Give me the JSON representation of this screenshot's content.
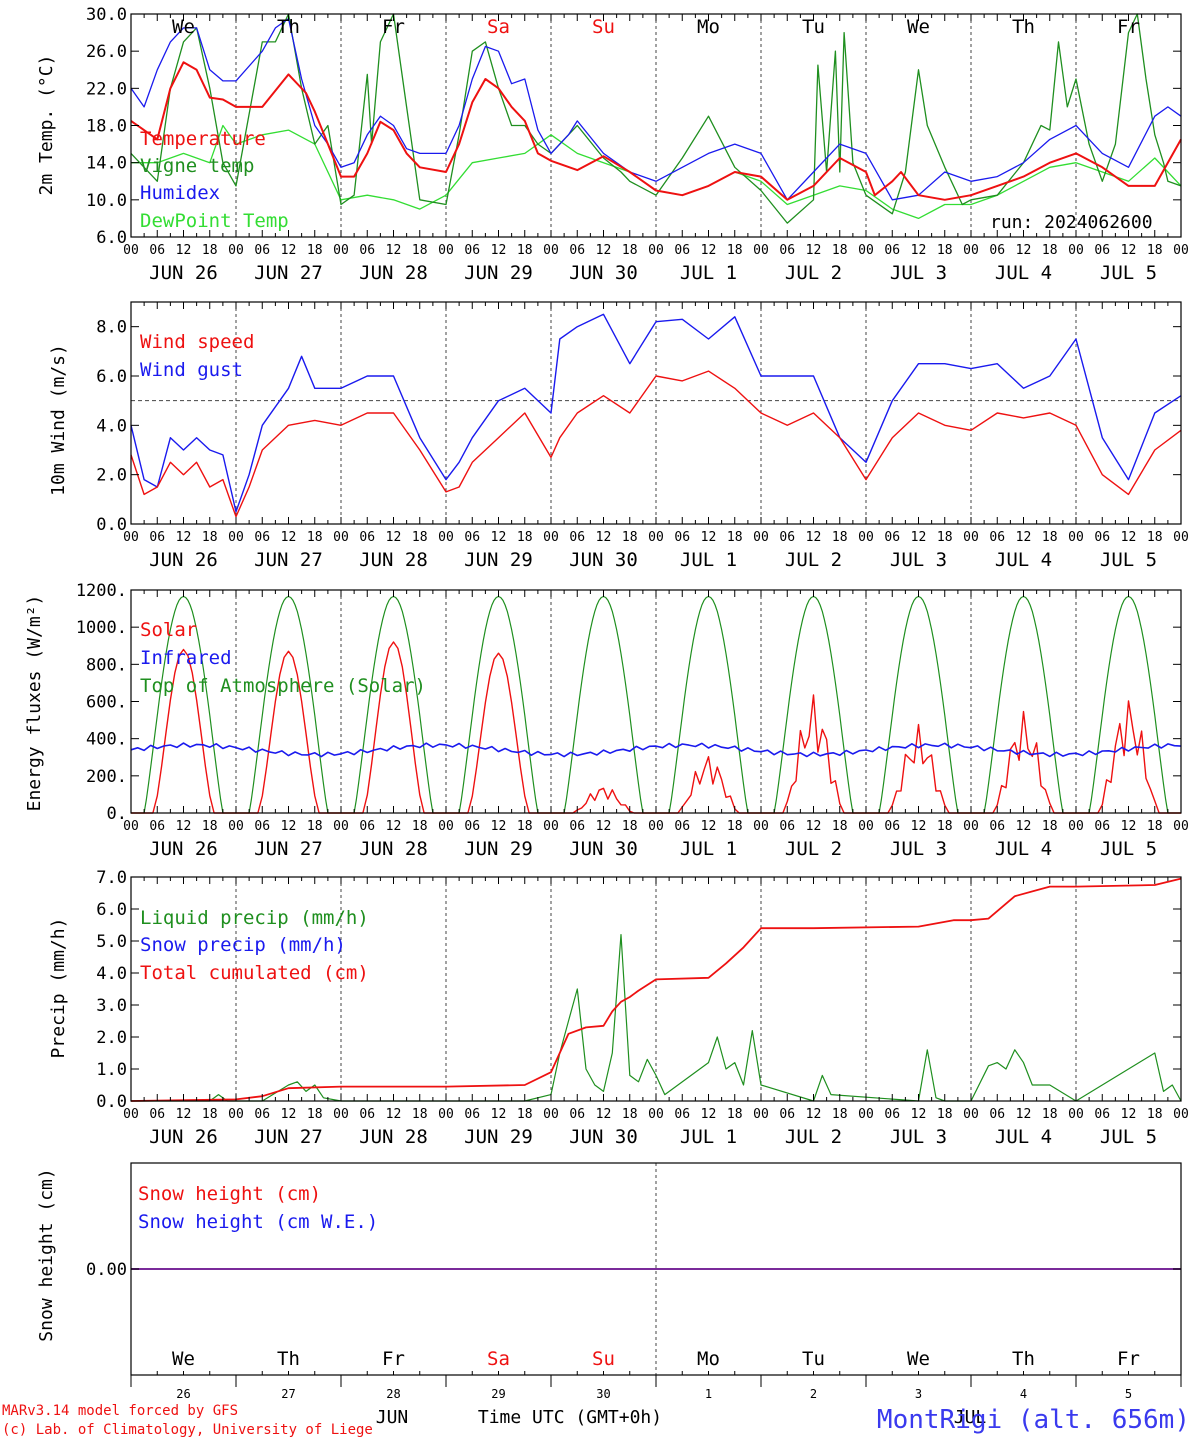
{
  "colors": {
    "red": "#ee1111",
    "blue": "#1a1aee",
    "green": "#1f8f1f",
    "lightgreen": "#33dd33",
    "purple": "#7a2a9a",
    "axis": "#000000",
    "gridline": "#555555"
  },
  "weekday_labels": [
    {
      "text": "We",
      "color": "black"
    },
    {
      "text": "Th",
      "color": "black"
    },
    {
      "text": "Fr",
      "color": "black"
    },
    {
      "text": "Sa",
      "color": "red"
    },
    {
      "text": "Su",
      "color": "red"
    },
    {
      "text": "Mo",
      "color": "black"
    },
    {
      "text": "Tu",
      "color": "black"
    },
    {
      "text": "We",
      "color": "black"
    },
    {
      "text": "Th",
      "color": "black"
    },
    {
      "text": "Fr",
      "color": "black"
    }
  ],
  "date_labels": [
    "JUN 26",
    "JUN 27",
    "JUN 28",
    "JUN 29",
    "JUN 30",
    "JUL  1",
    "JUL  2",
    "JUL  3",
    "JUL  4",
    "JUL  5"
  ],
  "hour_labels": [
    "00",
    "06",
    "12",
    "18"
  ],
  "last_hour_label": "00",
  "run_label": "run: 2024062600",
  "footer": {
    "model_line1": "MARv3.14 model forced by GFS",
    "model_line2": "(c) Lab. of Climatology, University of Liege",
    "month_label_jun": "JUN",
    "month_label_jul": "JUL",
    "time_label": "Time UTC (GMT+0h)",
    "station_label": "MontRigi (alt. 656m)",
    "day_numbers": [
      "26",
      "27",
      "28",
      "29",
      "30",
      "1",
      "2",
      "3",
      "4",
      "5"
    ]
  },
  "chart_data": [
    {
      "type": "line",
      "ylabel": "2m Temp. (°C)",
      "ylim": [
        6,
        30
      ],
      "yticks": [
        "6.0",
        "10.0",
        "14.0",
        "18.0",
        "22.0",
        "26.0",
        "30.0"
      ],
      "x_unit": "hours since 2024-06-26 00 UTC",
      "series": [
        {
          "name": "Temperature",
          "color": "red",
          "x": [
            0,
            6,
            9,
            12,
            15,
            18,
            21,
            24,
            30,
            36,
            40,
            42,
            48,
            51,
            54,
            57,
            60,
            63,
            66,
            72,
            75,
            78,
            81,
            84,
            87,
            90,
            93,
            96,
            102,
            108,
            114,
            120,
            126,
            132,
            138,
            144,
            150,
            156,
            162,
            168,
            170,
            174,
            176,
            180,
            186,
            192,
            198,
            204,
            210,
            216,
            222,
            228,
            234,
            240
          ],
          "y": [
            18.5,
            16.5,
            22.0,
            24.8,
            24.0,
            21.0,
            20.8,
            20.0,
            20.0,
            23.5,
            21.5,
            19.5,
            12.5,
            12.5,
            15.0,
            18.4,
            17.5,
            15.0,
            13.5,
            13.0,
            16.0,
            20.5,
            23.0,
            22.0,
            20.0,
            18.5,
            15.0,
            14.2,
            13.2,
            14.7,
            13.0,
            11.0,
            10.5,
            11.5,
            13.0,
            12.5,
            10.0,
            11.5,
            14.5,
            13.0,
            10.5,
            12.0,
            13.0,
            10.5,
            10.0,
            10.5,
            11.5,
            12.5,
            14.0,
            15.0,
            13.5,
            11.5,
            11.5,
            16.5
          ]
        },
        {
          "name": "Vigne temp",
          "color": "green",
          "x": [
            0,
            6,
            9,
            12,
            15,
            18,
            21,
            24,
            30,
            33,
            36,
            39,
            42,
            45,
            48,
            51,
            54,
            55,
            57,
            60,
            63,
            66,
            72,
            75,
            78,
            81,
            84,
            87,
            90,
            93,
            96,
            99,
            102,
            108,
            112,
            114,
            120,
            126,
            132,
            138,
            144,
            150,
            156,
            157,
            159,
            161,
            162,
            163,
            165,
            168,
            174,
            177,
            180,
            182,
            186,
            190,
            192,
            198,
            204,
            208,
            210,
            212,
            214,
            216,
            219,
            222,
            225,
            228,
            230,
            232,
            234,
            236,
            237,
            240
          ],
          "y": [
            15.0,
            12.0,
            22.0,
            27.0,
            28.5,
            22.0,
            14.0,
            11.5,
            27.0,
            27.0,
            30.0,
            22.0,
            16.0,
            18.0,
            9.5,
            10.5,
            23.5,
            16.0,
            27.0,
            30.0,
            20.0,
            10.0,
            9.5,
            17.0,
            26.0,
            27.0,
            22.0,
            18.0,
            18.0,
            16.0,
            15.0,
            16.5,
            18.0,
            14.5,
            13.0,
            12.0,
            10.5,
            14.5,
            19.0,
            13.5,
            11.0,
            7.5,
            10.0,
            24.5,
            13.0,
            26.0,
            13.0,
            28.0,
            14.0,
            10.5,
            8.5,
            13.0,
            24.0,
            18.0,
            13.5,
            9.5,
            10.0,
            10.5,
            14.0,
            18.0,
            17.5,
            27.0,
            20.0,
            23.0,
            16.0,
            12.0,
            16.0,
            28.0,
            30.0,
            23.0,
            17.0,
            14.0,
            12.0,
            11.5
          ]
        },
        {
          "name": "Humidex",
          "color": "blue",
          "x": [
            0,
            3,
            6,
            9,
            12,
            15,
            18,
            21,
            24,
            30,
            33,
            36,
            39,
            42,
            45,
            48,
            51,
            54,
            57,
            60,
            63,
            66,
            72,
            75,
            78,
            81,
            84,
            87,
            90,
            93,
            96,
            100,
            102,
            108,
            114,
            120,
            126,
            132,
            138,
            144,
            150,
            156,
            162,
            168,
            174,
            180,
            186,
            192,
            198,
            204,
            210,
            216,
            222,
            228,
            234,
            237,
            240
          ],
          "y": [
            22.0,
            20.0,
            24.0,
            27.0,
            28.5,
            28.5,
            24.0,
            22.8,
            22.8,
            26.0,
            28.5,
            29.5,
            23.0,
            18.0,
            16.0,
            13.5,
            14.0,
            17.0,
            19.0,
            18.0,
            15.5,
            15.0,
            15.0,
            18.0,
            23.0,
            26.5,
            26.0,
            22.5,
            23.0,
            17.5,
            15.0,
            17.0,
            18.5,
            15.0,
            13.0,
            12.0,
            13.5,
            15.0,
            16.0,
            15.0,
            10.0,
            13.0,
            16.0,
            15.0,
            10.0,
            10.5,
            13.0,
            12.0,
            12.5,
            14.0,
            16.5,
            18.0,
            15.0,
            13.5,
            19.0,
            20.0,
            19.0
          ]
        },
        {
          "name": "DewPoint Temp",
          "color": "lightgreen",
          "x": [
            0,
            6,
            12,
            18,
            21,
            24,
            30,
            36,
            42,
            48,
            54,
            60,
            66,
            72,
            78,
            84,
            90,
            96,
            102,
            108,
            114,
            120,
            126,
            132,
            138,
            144,
            150,
            156,
            162,
            168,
            174,
            180,
            186,
            192,
            198,
            204,
            210,
            216,
            222,
            228,
            234,
            240
          ],
          "y": [
            14.0,
            14.0,
            15.0,
            14.0,
            18.0,
            16.0,
            17.0,
            17.5,
            16.0,
            10.0,
            10.5,
            10.0,
            9.0,
            10.5,
            14.0,
            14.5,
            15.0,
            17.0,
            15.0,
            14.0,
            13.0,
            11.0,
            10.5,
            11.5,
            13.0,
            12.0,
            9.5,
            10.5,
            11.5,
            11.0,
            9.0,
            8.0,
            9.5,
            9.5,
            10.5,
            12.0,
            13.5,
            14.0,
            13.0,
            12.0,
            14.5,
            11.5
          ]
        }
      ]
    },
    {
      "type": "line",
      "ylabel": "10m Wind (m/s)",
      "ylim": [
        0,
        9
      ],
      "yticks": [
        "0.0",
        "2.0",
        "4.0",
        "6.0",
        "8.0"
      ],
      "reference_line": 5.0,
      "series": [
        {
          "name": "Wind speed",
          "color": "red",
          "x": [
            0,
            3,
            6,
            9,
            12,
            15,
            18,
            21,
            24,
            27,
            30,
            36,
            42,
            48,
            54,
            60,
            66,
            72,
            75,
            78,
            84,
            90,
            96,
            98,
            102,
            108,
            114,
            120,
            126,
            132,
            138,
            144,
            150,
            156,
            162,
            168,
            174,
            180,
            186,
            192,
            198,
            204,
            210,
            216,
            222,
            228,
            234,
            240
          ],
          "y": [
            2.8,
            1.2,
            1.5,
            2.5,
            2.0,
            2.5,
            1.5,
            1.8,
            0.3,
            1.5,
            3.0,
            4.0,
            4.2,
            4.0,
            4.5,
            4.5,
            3.0,
            1.3,
            1.5,
            2.5,
            3.5,
            4.5,
            2.7,
            3.5,
            4.5,
            5.2,
            4.5,
            6.0,
            5.8,
            6.2,
            5.5,
            4.5,
            4.0,
            4.5,
            3.5,
            1.8,
            3.5,
            4.5,
            4.0,
            3.8,
            4.5,
            4.3,
            4.5,
            4.0,
            2.0,
            1.2,
            3.0,
            3.8
          ]
        },
        {
          "name": "Wind gust",
          "color": "blue",
          "x": [
            0,
            3,
            6,
            9,
            12,
            15,
            18,
            21,
            24,
            27,
            30,
            36,
            39,
            42,
            48,
            54,
            60,
            66,
            72,
            75,
            78,
            84,
            90,
            96,
            98,
            102,
            108,
            114,
            120,
            126,
            132,
            138,
            144,
            150,
            156,
            162,
            168,
            174,
            180,
            186,
            192,
            198,
            204,
            210,
            216,
            222,
            228,
            234,
            240
          ],
          "y": [
            4.0,
            1.8,
            1.5,
            3.5,
            3.0,
            3.5,
            3.0,
            2.8,
            0.5,
            2.0,
            4.0,
            5.5,
            6.8,
            5.5,
            5.5,
            6.0,
            6.0,
            3.5,
            1.8,
            2.5,
            3.5,
            5.0,
            5.5,
            4.5,
            7.5,
            8.0,
            8.5,
            6.5,
            8.2,
            8.3,
            7.5,
            8.4,
            6.0,
            6.0,
            6.0,
            3.5,
            2.5,
            5.0,
            6.5,
            6.5,
            6.3,
            6.5,
            5.5,
            6.0,
            7.5,
            3.5,
            1.8,
            4.5,
            5.2
          ]
        }
      ]
    },
    {
      "type": "line",
      "ylabel": "Energy fluxes (W/m²)",
      "ylim": [
        0,
        1200
      ],
      "yticks": [
        "0.",
        "200.",
        "400.",
        "600.",
        "800.",
        "1000.",
        "1200."
      ],
      "series": [
        {
          "name": "Solar",
          "color": "red",
          "x": [],
          "y": []
        },
        {
          "name": "Infrared",
          "color": "blue",
          "x": [],
          "y": []
        },
        {
          "name": "Top of Atmosphere (Solar)",
          "color": "green",
          "x": [],
          "y": []
        }
      ],
      "solar_daily_peaks": [
        880,
        870,
        920,
        860,
        180,
        380,
        760,
        560,
        650,
        750
      ],
      "toa_daily_peak": 1165,
      "infrared_level": 340
    },
    {
      "type": "line",
      "ylabel": "Precip (mm/h)",
      "ylim": [
        0,
        7
      ],
      "yticks": [
        "0.0",
        "1.0",
        "2.0",
        "3.0",
        "4.0",
        "5.0",
        "6.0",
        "7.0"
      ],
      "series": [
        {
          "name": "Liquid precip (mm/h)",
          "color": "green",
          "x": [
            0,
            18,
            20,
            22,
            30,
            36,
            38,
            40,
            42,
            44,
            48,
            90,
            96,
            98,
            100,
            102,
            104,
            106,
            108,
            110,
            112,
            114,
            116,
            118,
            120,
            122,
            132,
            134,
            136,
            138,
            140,
            142,
            144,
            156,
            158,
            160,
            180,
            182,
            184,
            186,
            192,
            196,
            198,
            200,
            202,
            204,
            206,
            210,
            216,
            234,
            236,
            238,
            240
          ],
          "y": [
            0,
            0,
            0.2,
            0,
            0,
            0.5,
            0.6,
            0.3,
            0.5,
            0.1,
            0,
            0,
            0.2,
            1.5,
            2.5,
            3.5,
            1.0,
            0.5,
            0.3,
            1.5,
            5.2,
            0.8,
            0.6,
            1.3,
            0.8,
            0.2,
            1.2,
            2.0,
            1.0,
            1.2,
            0.5,
            2.2,
            0.5,
            0,
            0.8,
            0.2,
            0,
            1.6,
            0.1,
            0,
            0,
            1.1,
            1.2,
            1.0,
            1.6,
            1.2,
            0.5,
            0.5,
            0,
            1.5,
            0.3,
            0.5,
            0
          ]
        },
        {
          "name": "Snow precip (mm/h)",
          "color": "blue",
          "x": [],
          "y": []
        },
        {
          "name": "Total cumulated (cm)",
          "color": "red",
          "x": [
            0,
            24,
            30,
            36,
            48,
            72,
            90,
            96,
            100,
            104,
            108,
            110,
            112,
            114,
            116,
            120,
            132,
            136,
            140,
            144,
            156,
            180,
            188,
            192,
            196,
            202,
            210,
            216,
            234,
            240
          ],
          "y": [
            0,
            0.05,
            0.15,
            0.4,
            0.45,
            0.45,
            0.5,
            0.9,
            2.1,
            2.3,
            2.35,
            2.8,
            3.1,
            3.25,
            3.45,
            3.8,
            3.85,
            4.3,
            4.8,
            5.4,
            5.4,
            5.45,
            5.65,
            5.65,
            5.7,
            6.4,
            6.7,
            6.7,
            6.75,
            6.95
          ]
        }
      ]
    },
    {
      "type": "line",
      "ylabel": "Snow height (cm)",
      "ytick": "0.00",
      "series": [
        {
          "name": "Snow height (cm)",
          "color": "red",
          "x": [
            0,
            120
          ],
          "y": [
            0,
            0
          ]
        },
        {
          "name": "Snow height (cm W.E.)",
          "color": "blue",
          "x": [
            0,
            120
          ],
          "y": [
            0,
            0
          ]
        }
      ]
    }
  ]
}
